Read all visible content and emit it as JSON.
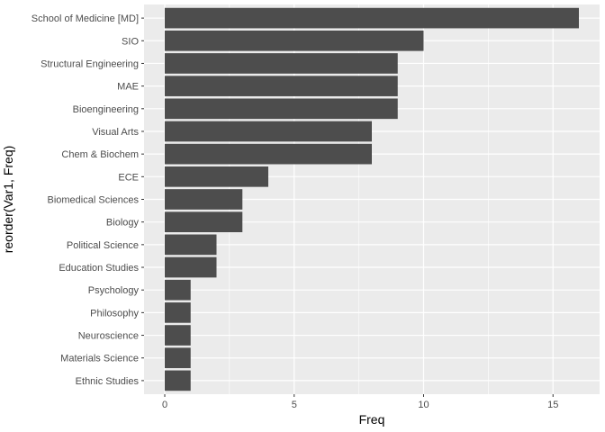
{
  "chart_data": {
    "type": "bar",
    "orientation": "horizontal",
    "xlabel": "Freq",
    "ylabel": "reorder(Var1, Freq)",
    "categories": [
      "School of Medicine [MD]",
      "SIO",
      "Structural Engineering",
      "MAE",
      "Bioengineering",
      "Visual Arts",
      "Chem & Biochem",
      "ECE",
      "Biomedical Sciences",
      "Biology",
      "Political Science",
      "Education Studies",
      "Psychology",
      "Philosophy",
      "Neuroscience",
      "Materials Science",
      "Ethnic Studies"
    ],
    "values": [
      16,
      10,
      9,
      9,
      9,
      8,
      8,
      4,
      3,
      3,
      2,
      2,
      1,
      1,
      1,
      1,
      1
    ],
    "xlim": [
      -0.8,
      16.8
    ],
    "xticks": [
      0,
      5,
      10,
      15
    ],
    "xtick_labels": [
      "0",
      "5",
      "10",
      "15"
    ],
    "grid": true,
    "colors": {
      "panel": "#ebebeb",
      "grid_major": "#ffffff",
      "bar": "#4d4d4d",
      "tick_text": "#4d4d4d",
      "tick_mark": "#333333"
    }
  }
}
